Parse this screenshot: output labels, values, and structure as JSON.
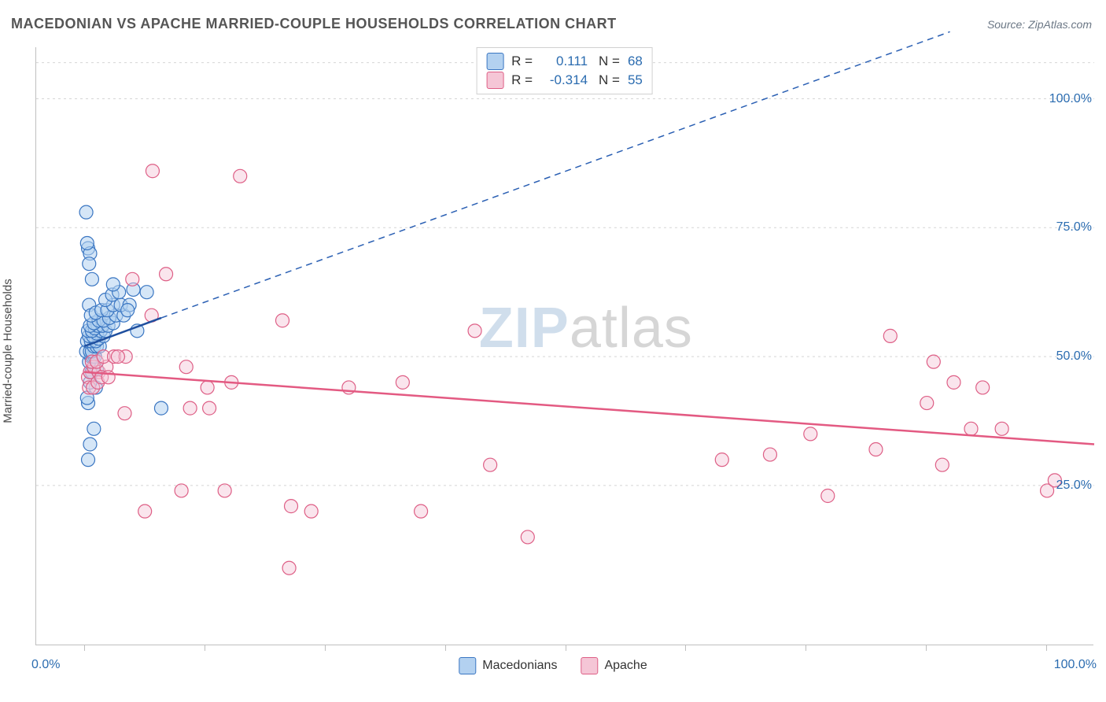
{
  "title": "MACEDONIAN VS APACHE MARRIED-COUPLE HOUSEHOLDS CORRELATION CHART",
  "source": "Source: ZipAtlas.com",
  "y_axis_label": "Married-couple Households",
  "watermark": {
    "a": "ZIP",
    "b": "atlas"
  },
  "chart": {
    "type": "scatter",
    "background_color": "#ffffff",
    "grid_color": "#d5d5d5",
    "axis_color": "#bfbfbf",
    "tick_color": "#bfbfbf",
    "xlim": [
      -5,
      105
    ],
    "ylim": [
      -6,
      110
    ],
    "x_tick_positions": [
      0,
      12.5,
      25,
      37.5,
      50,
      62.5,
      75,
      87.5,
      100
    ],
    "y_grid_lines": [
      25,
      50,
      75,
      100,
      107
    ],
    "y_tick_labels": [
      {
        "value": 25,
        "label": "25.0%"
      },
      {
        "value": 50,
        "label": "50.0%"
      },
      {
        "value": 75,
        "label": "75.0%"
      },
      {
        "value": 100,
        "label": "100.0%"
      }
    ],
    "x_axis_min_label": "0.0%",
    "x_axis_max_label": "100.0%",
    "marker_radius": 8.5,
    "marker_stroke_width": 1.2,
    "trend_line_width_solid": 2.5,
    "trend_line_width_dash": 1.5,
    "dash_pattern": "8 6",
    "title_fontsize": 18,
    "title_color": "#555555",
    "axis_label_color": "#2b6cb0",
    "axis_label_fontsize": 16,
    "y_label_color": "#4a4a4a",
    "y_label_fontsize": 15,
    "series": [
      {
        "name": "Macedonians",
        "fill_color": "#b3d1f0",
        "fill_opacity": 0.55,
        "stroke_color": "#3a76c2",
        "line_solid_color": "#1f4f9e",
        "line_dash_color": "#2a5fb3",
        "swatch_fill": "#b3d1f0",
        "swatch_stroke": "#3a76c2",
        "R": "0.111",
        "N": "68",
        "R_color": "#2b6cb0",
        "N_color": "#2b6cb0",
        "trend": {
          "x1": 0,
          "y1": 52,
          "x2": 8,
          "y2": 57.5,
          "dash_x2": 90,
          "dash_y2": 113
        },
        "points": [
          [
            0.2,
            78
          ],
          [
            0.4,
            71
          ],
          [
            0.6,
            70
          ],
          [
            0.5,
            68
          ],
          [
            0.8,
            65
          ],
          [
            0.3,
            72
          ],
          [
            0.5,
            60
          ],
          [
            0.4,
            30
          ],
          [
            0.6,
            33
          ],
          [
            1.0,
            36
          ],
          [
            0.4,
            41
          ],
          [
            0.3,
            42
          ],
          [
            1.2,
            44
          ],
          [
            0.6,
            45
          ],
          [
            0.6,
            47
          ],
          [
            0.8,
            47
          ],
          [
            1.3,
            47.5
          ],
          [
            1.0,
            48
          ],
          [
            0.5,
            49
          ],
          [
            0.7,
            50
          ],
          [
            0.9,
            50
          ],
          [
            1.1,
            50
          ],
          [
            0.2,
            51
          ],
          [
            0.6,
            51
          ],
          [
            0.8,
            51
          ],
          [
            1.0,
            52
          ],
          [
            1.3,
            52
          ],
          [
            1.6,
            52
          ],
          [
            0.3,
            53
          ],
          [
            0.7,
            53
          ],
          [
            1.2,
            53
          ],
          [
            1.5,
            53.5
          ],
          [
            2.0,
            54
          ],
          [
            0.5,
            54
          ],
          [
            0.9,
            54
          ],
          [
            1.3,
            54.5
          ],
          [
            1.7,
            55
          ],
          [
            2.2,
            55
          ],
          [
            0.4,
            55
          ],
          [
            0.8,
            55
          ],
          [
            1.1,
            55.5
          ],
          [
            1.4,
            56
          ],
          [
            1.9,
            56
          ],
          [
            2.5,
            56
          ],
          [
            3.0,
            56.5
          ],
          [
            0.6,
            56
          ],
          [
            1.0,
            56.5
          ],
          [
            1.5,
            57
          ],
          [
            2.0,
            57
          ],
          [
            2.6,
            57.5
          ],
          [
            3.3,
            58
          ],
          [
            4.1,
            58
          ],
          [
            0.7,
            58
          ],
          [
            1.2,
            58.5
          ],
          [
            1.8,
            59
          ],
          [
            2.4,
            59
          ],
          [
            3.0,
            60
          ],
          [
            3.8,
            60
          ],
          [
            4.7,
            60
          ],
          [
            2.2,
            61
          ],
          [
            2.9,
            62
          ],
          [
            3.6,
            62.5
          ],
          [
            3.0,
            64
          ],
          [
            5.1,
            63
          ],
          [
            6.5,
            62.5
          ],
          [
            8.0,
            40
          ],
          [
            5.5,
            55
          ],
          [
            4.5,
            59
          ]
        ]
      },
      {
        "name": "Apache",
        "fill_color": "#f5c6d6",
        "fill_opacity": 0.45,
        "stroke_color": "#de5f86",
        "line_solid_color": "#e35a82",
        "line_dash_color": "#e35a82",
        "swatch_fill": "#f5c6d6",
        "swatch_stroke": "#de5f86",
        "R": "-0.314",
        "N": "55",
        "R_color": "#2b6cb0",
        "N_color": "#2b6cb0",
        "trend": {
          "x1": 0,
          "y1": 47,
          "x2": 105,
          "y2": 33,
          "dash_x2": 105,
          "dash_y2": 33
        },
        "points": [
          [
            0.4,
            46
          ],
          [
            0.6,
            47
          ],
          [
            1.0,
            48
          ],
          [
            1.5,
            47
          ],
          [
            2.3,
            48
          ],
          [
            0.8,
            49
          ],
          [
            1.3,
            49
          ],
          [
            2.0,
            50
          ],
          [
            3.1,
            50
          ],
          [
            4.3,
            50
          ],
          [
            0.5,
            44
          ],
          [
            0.9,
            44
          ],
          [
            1.4,
            45
          ],
          [
            1.8,
            46
          ],
          [
            2.5,
            46
          ],
          [
            3.5,
            50
          ],
          [
            5.0,
            65
          ],
          [
            7.1,
            86
          ],
          [
            7.0,
            58
          ],
          [
            8.5,
            66
          ],
          [
            10.6,
            48
          ],
          [
            11.0,
            40
          ],
          [
            12.8,
            44
          ],
          [
            14.6,
            24
          ],
          [
            15.3,
            45
          ],
          [
            16.2,
            85
          ],
          [
            20.6,
            57
          ],
          [
            21.3,
            9
          ],
          [
            21.5,
            21
          ],
          [
            23.6,
            20
          ],
          [
            10.1,
            24
          ],
          [
            6.3,
            20
          ],
          [
            4.2,
            39
          ],
          [
            13.0,
            40
          ],
          [
            27.5,
            44
          ],
          [
            33.1,
            45
          ],
          [
            35.0,
            20
          ],
          [
            40.6,
            55
          ],
          [
            42.2,
            29
          ],
          [
            46.1,
            15
          ],
          [
            66.3,
            30
          ],
          [
            71.3,
            31
          ],
          [
            75.5,
            35
          ],
          [
            77.3,
            23
          ],
          [
            82.3,
            32
          ],
          [
            83.8,
            54
          ],
          [
            87.6,
            41
          ],
          [
            88.3,
            49
          ],
          [
            89.2,
            29
          ],
          [
            90.4,
            45
          ],
          [
            92.2,
            36
          ],
          [
            93.4,
            44
          ],
          [
            95.4,
            36
          ],
          [
            100.1,
            24
          ],
          [
            100.9,
            26
          ]
        ]
      }
    ],
    "legend_bottom": [
      {
        "swatch_fill": "#b3d1f0",
        "swatch_stroke": "#3a76c2",
        "label": "Macedonians"
      },
      {
        "swatch_fill": "#f5c6d6",
        "swatch_stroke": "#de5f86",
        "label": "Apache"
      }
    ]
  }
}
